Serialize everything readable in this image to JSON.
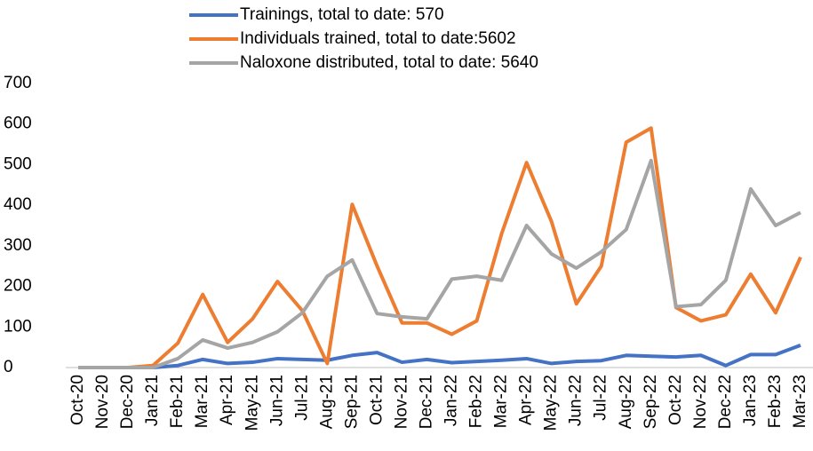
{
  "chart_data": {
    "type": "line",
    "categories": [
      "Oct-20",
      "Nov-20",
      "Dec-20",
      "Jan-21",
      "Feb-21",
      "Mar-21",
      "Apr-21",
      "May-21",
      "Jun-21",
      "Jul-21",
      "Aug-21",
      "Sep-21",
      "Oct-21",
      "Nov-21",
      "Dec-21",
      "Jan-22",
      "Feb-22",
      "Mar-22",
      "Apr-22",
      "May-22",
      "Jun-22",
      "Jul-22",
      "Aug-22",
      "Sep-22",
      "Oct-22",
      "Nov-22",
      "Dec-22",
      "Jan-23",
      "Feb-23",
      "Mar-23"
    ],
    "series": [
      {
        "name": "Trainings, total to date: 570",
        "color": "#4472c4",
        "values": [
          0,
          0,
          0,
          0,
          5,
          20,
          10,
          13,
          22,
          20,
          18,
          30,
          37,
          13,
          20,
          12,
          15,
          18,
          22,
          10,
          15,
          17,
          30,
          28,
          26,
          30,
          5,
          32,
          32,
          55
        ]
      },
      {
        "name": "Individuals trained, total to date:5602",
        "color": "#ed7d31",
        "values": [
          0,
          0,
          0,
          5,
          60,
          180,
          62,
          120,
          212,
          140,
          10,
          402,
          250,
          110,
          110,
          82,
          115,
          330,
          505,
          360,
          157,
          250,
          555,
          590,
          148,
          115,
          130,
          230,
          135,
          272
        ]
      },
      {
        "name": "Naloxone distributed, total to date: 5640",
        "color": "#a5a5a5",
        "values": [
          0,
          0,
          0,
          0,
          22,
          68,
          48,
          62,
          88,
          135,
          225,
          265,
          133,
          125,
          120,
          218,
          225,
          215,
          350,
          280,
          245,
          285,
          340,
          510,
          150,
          155,
          215,
          440,
          350,
          382
        ]
      }
    ],
    "ylim": [
      0,
      700
    ],
    "yticks": [
      0,
      100,
      200,
      300,
      400,
      500,
      600,
      700
    ],
    "legend": "top"
  }
}
